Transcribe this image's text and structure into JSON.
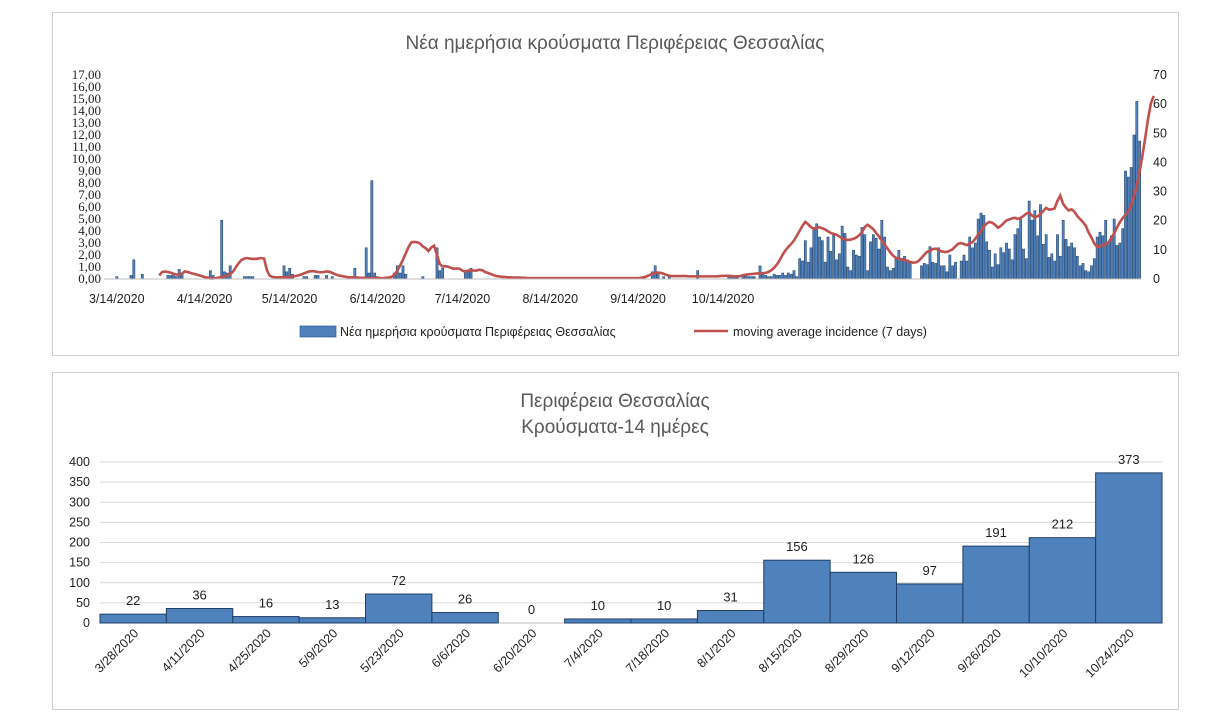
{
  "chart_data": [
    {
      "type": "bar",
      "title": "Νέα ημερήσια κρούσματα Περιφέρειας Θεσσαλίας",
      "x_tick_labels": [
        "3/14/2020",
        "4/14/2020",
        "5/14/2020",
        "6/14/2020",
        "7/14/2020",
        "8/14/2020",
        "9/14/2020",
        "10/14/2020"
      ],
      "y_left_ticks": [
        "0,00",
        "1,00",
        "2,00",
        "3,00",
        "4,00",
        "5,00",
        "6,00",
        "7,00",
        "8,00",
        "9,00",
        "10,00",
        "11,00",
        "12,00",
        "13,00",
        "14,00",
        "15,00",
        "16,00",
        "17,00"
      ],
      "y_right_ticks": [
        "0",
        "10",
        "20",
        "30",
        "40",
        "50",
        "60",
        "70"
      ],
      "ylim_left": [
        0,
        17
      ],
      "ylim_right": [
        0,
        70
      ],
      "grid": false,
      "legend_position": "bottom",
      "start_date": "2020-03-10",
      "series": [
        {
          "name": "Νέα ημερήσια κρούσματα Περιφέρειας Θεσσαλίας",
          "type": "bar",
          "axis": "left",
          "color": "#4f81bd",
          "values": [
            0,
            0,
            0,
            0,
            0.2,
            0,
            0,
            0,
            0,
            0.3,
            1.6,
            0,
            0,
            0.4,
            0,
            0,
            0,
            0,
            0,
            0,
            0,
            0,
            0.3,
            0.3,
            0.4,
            0.2,
            0.8,
            0.5,
            0,
            0,
            0,
            0,
            0,
            0,
            0,
            0,
            0.2,
            0.7,
            0.3,
            0,
            0,
            4.9,
            0.6,
            0.5,
            1.1,
            0,
            0,
            0,
            0,
            0.2,
            0.2,
            0.2,
            0.2,
            0,
            0,
            0,
            0,
            0,
            0,
            0,
            0,
            0,
            0,
            1.1,
            0.6,
            0.9,
            0.4,
            0,
            0,
            0,
            0.2,
            0.2,
            0,
            0,
            0.3,
            0.3,
            0,
            0,
            0.3,
            0,
            0.2,
            0,
            0,
            0,
            0,
            0,
            0,
            0,
            0.9,
            0,
            0,
            0,
            2.6,
            0.5,
            8.2,
            0.5,
            0.2,
            0,
            0,
            0,
            0,
            0,
            0.5,
            1.1,
            0.5,
            1.1,
            0.4,
            0,
            0,
            0,
            0,
            0,
            0.2,
            0,
            0,
            0,
            0,
            2.6,
            0.7,
            0.9,
            0,
            0,
            0,
            0,
            0,
            0,
            0,
            0.7,
            0.6,
            0.9,
            0,
            0,
            0,
            0,
            0,
            0,
            0,
            0,
            0,
            0,
            0,
            0,
            0,
            0,
            0,
            0,
            0,
            0,
            0,
            0,
            0,
            0,
            0,
            0,
            0,
            0,
            0,
            0,
            0,
            0,
            0,
            0,
            0,
            0,
            0,
            0,
            0,
            0,
            0,
            0,
            0,
            0,
            0,
            0,
            0,
            0,
            0,
            0,
            0,
            0,
            0,
            0,
            0,
            0,
            0,
            0,
            0,
            0,
            0,
            0,
            0.2,
            0,
            0,
            0.6,
            1.1,
            0.5,
            0,
            0.2,
            0,
            0.2,
            0,
            0,
            0,
            0,
            0,
            0,
            0,
            0,
            0,
            0.7,
            0,
            0,
            0,
            0,
            0,
            0,
            0,
            0,
            0,
            0,
            0.3,
            0.2,
            0.2,
            0.3,
            0,
            0.3,
            0.3,
            0.2,
            0.2,
            0.2,
            0,
            1.1,
            0.5,
            0.3,
            0.2,
            0.2,
            0.4,
            0.3,
            0.3,
            0.5,
            0.3,
            0.5,
            0.4,
            0.7,
            0.2,
            1.7,
            1.5,
            3.2,
            1.4,
            2.6,
            4.3,
            4.6,
            3.5,
            3.2,
            1.4,
            3.5,
            2.3,
            3.8,
            1.6,
            2.1,
            4.4,
            3.8,
            1.0,
            0.7,
            2.4,
            2.0,
            1.9,
            4.3,
            3.7,
            0.7,
            3.1,
            3.7,
            3.4,
            2.5,
            4.9,
            3.5,
            1.0,
            0.7,
            0.9,
            1.8,
            2.4,
            1.7,
            1.9,
            1.6,
            1.4,
            0,
            0,
            0,
            1.1,
            1.3,
            1.2,
            2.7,
            1.4,
            1.3,
            2.6,
            1.1,
            1.1,
            0.6,
            2.0,
            1.1,
            1.4,
            0,
            1.5,
            2.0,
            1.5,
            3.5,
            2.6,
            3.0,
            5.0,
            5.5,
            5.3,
            3.1,
            2.4,
            1.0,
            2.1,
            1.2,
            2.6,
            2.2,
            3.0,
            2.5,
            1.6,
            3.7,
            4.2,
            5.0,
            2.5,
            1.7,
            6.5,
            4.9,
            5.7,
            3.6,
            6.2,
            2.9,
            3.7,
            1.8,
            2.1,
            1.5,
            3.7,
            1.9,
            4.9,
            3.3,
            2.7,
            3.0,
            2.6,
            1.9,
            1.1,
            1.3,
            0.7,
            0.6,
            1.1,
            1.7,
            3.5,
            3.9,
            3.6,
            4.9,
            3.0,
            3.6,
            5.0,
            2.8,
            3.0,
            4.2,
            9.0,
            8.5,
            9.3,
            12.0,
            14.8,
            11.5
          ]
        },
        {
          "name": "moving average incidence (7 days)",
          "type": "line",
          "axis": "right",
          "color": "#c0504d",
          "values": [
            null,
            null,
            null,
            null,
            null,
            null,
            null,
            null,
            null,
            null,
            null,
            null,
            null,
            null,
            null,
            null,
            null,
            null,
            null,
            1.2,
            2.4,
            2.6,
            2.4,
            2.2,
            1.8,
            1.6,
            1.4,
            1.8,
            2.6,
            2.4,
            2.1,
            1.8,
            1.6,
            1.3,
            1.0,
            0.7,
            0.4,
            0.2,
            0.2,
            0.3,
            0.5,
            0.6,
            0.9,
            1.2,
            1.6,
            2.5,
            4.0,
            5.4,
            6.5,
            7.0,
            7.2,
            7.0,
            6.9,
            6.9,
            7.0,
            7.2,
            7.0,
            3.0,
            1.1,
            0.7,
            0.6,
            0.6,
            0.6,
            0.6,
            0.6,
            0.7,
            0.8,
            1.0,
            1.2,
            1.5,
            1.9,
            2.3,
            2.6,
            2.7,
            2.6,
            2.4,
            2.3,
            2.4,
            2.6,
            2.5,
            2.1,
            1.7,
            1.3,
            1.1,
            0.9,
            0.7,
            0.6,
            0.6,
            0.5,
            0.5,
            0.4,
            0.4,
            0.3,
            0.3,
            0.3,
            0.3,
            0.3,
            0.3,
            0.3,
            0.4,
            0.5,
            0.7,
            1.5,
            2.8,
            4.6,
            6.6,
            8.8,
            11.0,
            12.6,
            12.7,
            12.6,
            12.2,
            11.2,
            10.6,
            9.6,
            10.8,
            11.4,
            8.3,
            5.2,
            4.3,
            4.4,
            4.2,
            3.8,
            3.5,
            3.6,
            3.5,
            2.9,
            2.5,
            2.9,
            3.0,
            2.9,
            2.9,
            3.2,
            3.0,
            2.4,
            2.1,
            1.7,
            1.3,
            1.0,
            0.9,
            0.7,
            0.7,
            0.6,
            0.6,
            0.5,
            0.5,
            0.5,
            0.4,
            0.4,
            0.3,
            0.3,
            0.3,
            0.3,
            0.3,
            0.3,
            0.3,
            0.3,
            0.3,
            0.3,
            0.3,
            0.3,
            0.3,
            0.3,
            0.3,
            0.3,
            0.3,
            0.3,
            0.3,
            0.3,
            0.3,
            0.3,
            0.3,
            0.3,
            0.3,
            0.3,
            0.3,
            0.3,
            0.3,
            0.3,
            0.3,
            0.3,
            0.3,
            0.3,
            0.3,
            0.3,
            0.3,
            0.3,
            0.3,
            0.3,
            0.4,
            0.6,
            0.9,
            1.3,
            1.8,
            2.1,
            2.2,
            2.1,
            1.8,
            1.4,
            1.1,
            1.0,
            1.0,
            1.0,
            1.0,
            1.0,
            1.0,
            0.9,
            0.9,
            0.9,
            0.9,
            0.9,
            0.9,
            0.9,
            0.9,
            0.9,
            0.9,
            0.9,
            1.0,
            1.1,
            1.1,
            1.1,
            1.0,
            0.9,
            0.9,
            1.0,
            1.3,
            1.5,
            1.6,
            1.7,
            1.8,
            1.9,
            1.9,
            2.0,
            2.1,
            2.4,
            3.0,
            3.8,
            5.0,
            6.5,
            8.3,
            9.8,
            11.0,
            12.0,
            13.2,
            14.8,
            16.5,
            18.2,
            19.6,
            18.8,
            17.8,
            17.2,
            17.5,
            17.8,
            17.4,
            17.0,
            16.4,
            15.8,
            15.5,
            15.2,
            14.6,
            14.0,
            13.6,
            13.4,
            13.5,
            13.8,
            14.2,
            15.0,
            16.0,
            17.8,
            18.6,
            17.9,
            17.1,
            15.8,
            14.6,
            13.2,
            11.9,
            10.5,
            9.1,
            8.0,
            7.3,
            6.9,
            6.8,
            6.6,
            6.2,
            5.9,
            5.6,
            5.7,
            6.2,
            7.2,
            8.3,
            9.3,
            9.7,
            10.3,
            10.4,
            10.0,
            9.5,
            9.3,
            9.3,
            9.7,
            10.2,
            11.2,
            12.1,
            12.3,
            12.0,
            11.6,
            12.2,
            12.6,
            13.8,
            15.2,
            16.5,
            18.0,
            19.0,
            19.6,
            19.3,
            18.6,
            17.6,
            18.2,
            19.1,
            20.1,
            20.4,
            20.8,
            21.0,
            20.6,
            21.0,
            21.6,
            22.4,
            22.8,
            21.8,
            21.2,
            21.5,
            22.3,
            23.3,
            24.4,
            23.8,
            23.9,
            24.2,
            26.8,
            28.6,
            25.8,
            24.5,
            23.5,
            23.9,
            23.1,
            21.6,
            20.6,
            19.5,
            18.3,
            16.0,
            14.3,
            12.2,
            11.0,
            11.2,
            11.6,
            11.8,
            12.6,
            14.0,
            15.6,
            17.6,
            19.4,
            20.9,
            21.9,
            23.1,
            25.3,
            28.2,
            32.0,
            36.8,
            42.3,
            48.5,
            55.0,
            60.3,
            62.8
          ]
        }
      ]
    },
    {
      "type": "bar",
      "title": "Περιφέρεια Θεσσαλίας",
      "subtitle": "Κρούσματα-14 ημέρες",
      "categories": [
        "3/28/2020",
        "4/11/2020",
        "4/25/2020",
        "5/9/2020",
        "5/23/2020",
        "6/6/2020",
        "6/20/2020",
        "7/4/2020",
        "7/18/2020",
        "8/1/2020",
        "8/15/2020",
        "8/29/2020",
        "9/12/2020",
        "9/26/2020",
        "10/10/2020",
        "10/24/2020"
      ],
      "values": [
        22,
        36,
        16,
        13,
        72,
        26,
        0,
        10,
        10,
        31,
        156,
        126,
        97,
        191,
        212,
        373
      ],
      "data_labels": [
        "22",
        "36",
        "16",
        "13",
        "72",
        "26",
        "0",
        "10",
        "10",
        "31",
        "156",
        "126",
        "97",
        "191",
        "212",
        "373"
      ],
      "y_ticks": [
        "0",
        "50",
        "100",
        "150",
        "200",
        "250",
        "300",
        "350",
        "400"
      ],
      "ylim": [
        0,
        400
      ],
      "grid": true,
      "color": "#4f81bd"
    }
  ]
}
